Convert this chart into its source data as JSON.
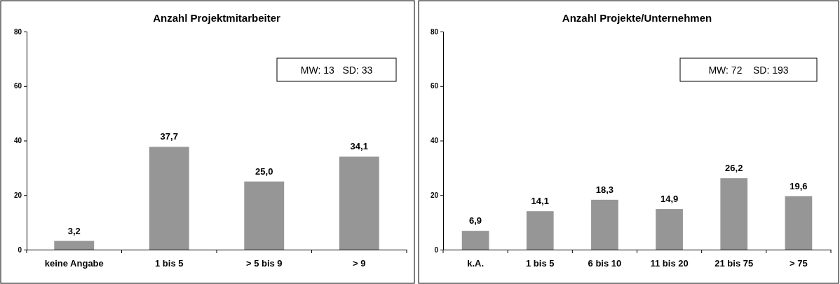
{
  "chart_data": [
    {
      "type": "bar",
      "title": "Anzahl Projektmitarbeiter",
      "categories": [
        "keine Angabe",
        "1 bis 5",
        "> 5 bis 9",
        "> 9"
      ],
      "values": [
        3.2,
        37.7,
        25.0,
        34.1
      ],
      "value_labels": [
        "3,2",
        "37,7",
        "25,0",
        "34,1"
      ],
      "color": "#969696",
      "ylim": [
        0,
        80
      ],
      "yticks": [
        0,
        20,
        40,
        60,
        80
      ],
      "grid": false,
      "annotations": [
        "MW: 13   SD: 33"
      ]
    },
    {
      "type": "bar",
      "title": "Anzahl Projekte/Unternehmen",
      "categories": [
        "k.A.",
        "1 bis 5",
        "6 bis 10",
        "11 bis 20",
        "21 bis 75",
        "> 75"
      ],
      "values": [
        6.9,
        14.1,
        18.3,
        14.9,
        26.2,
        19.6
      ],
      "value_labels": [
        "6,9",
        "14,1",
        "18,3",
        "14,9",
        "26,2",
        "19,6"
      ],
      "color": "#969696",
      "ylim": [
        0,
        80
      ],
      "yticks": [
        0,
        20,
        40,
        60,
        80
      ],
      "grid": false,
      "annotations": [
        "MW: 72    SD: 193"
      ]
    }
  ]
}
